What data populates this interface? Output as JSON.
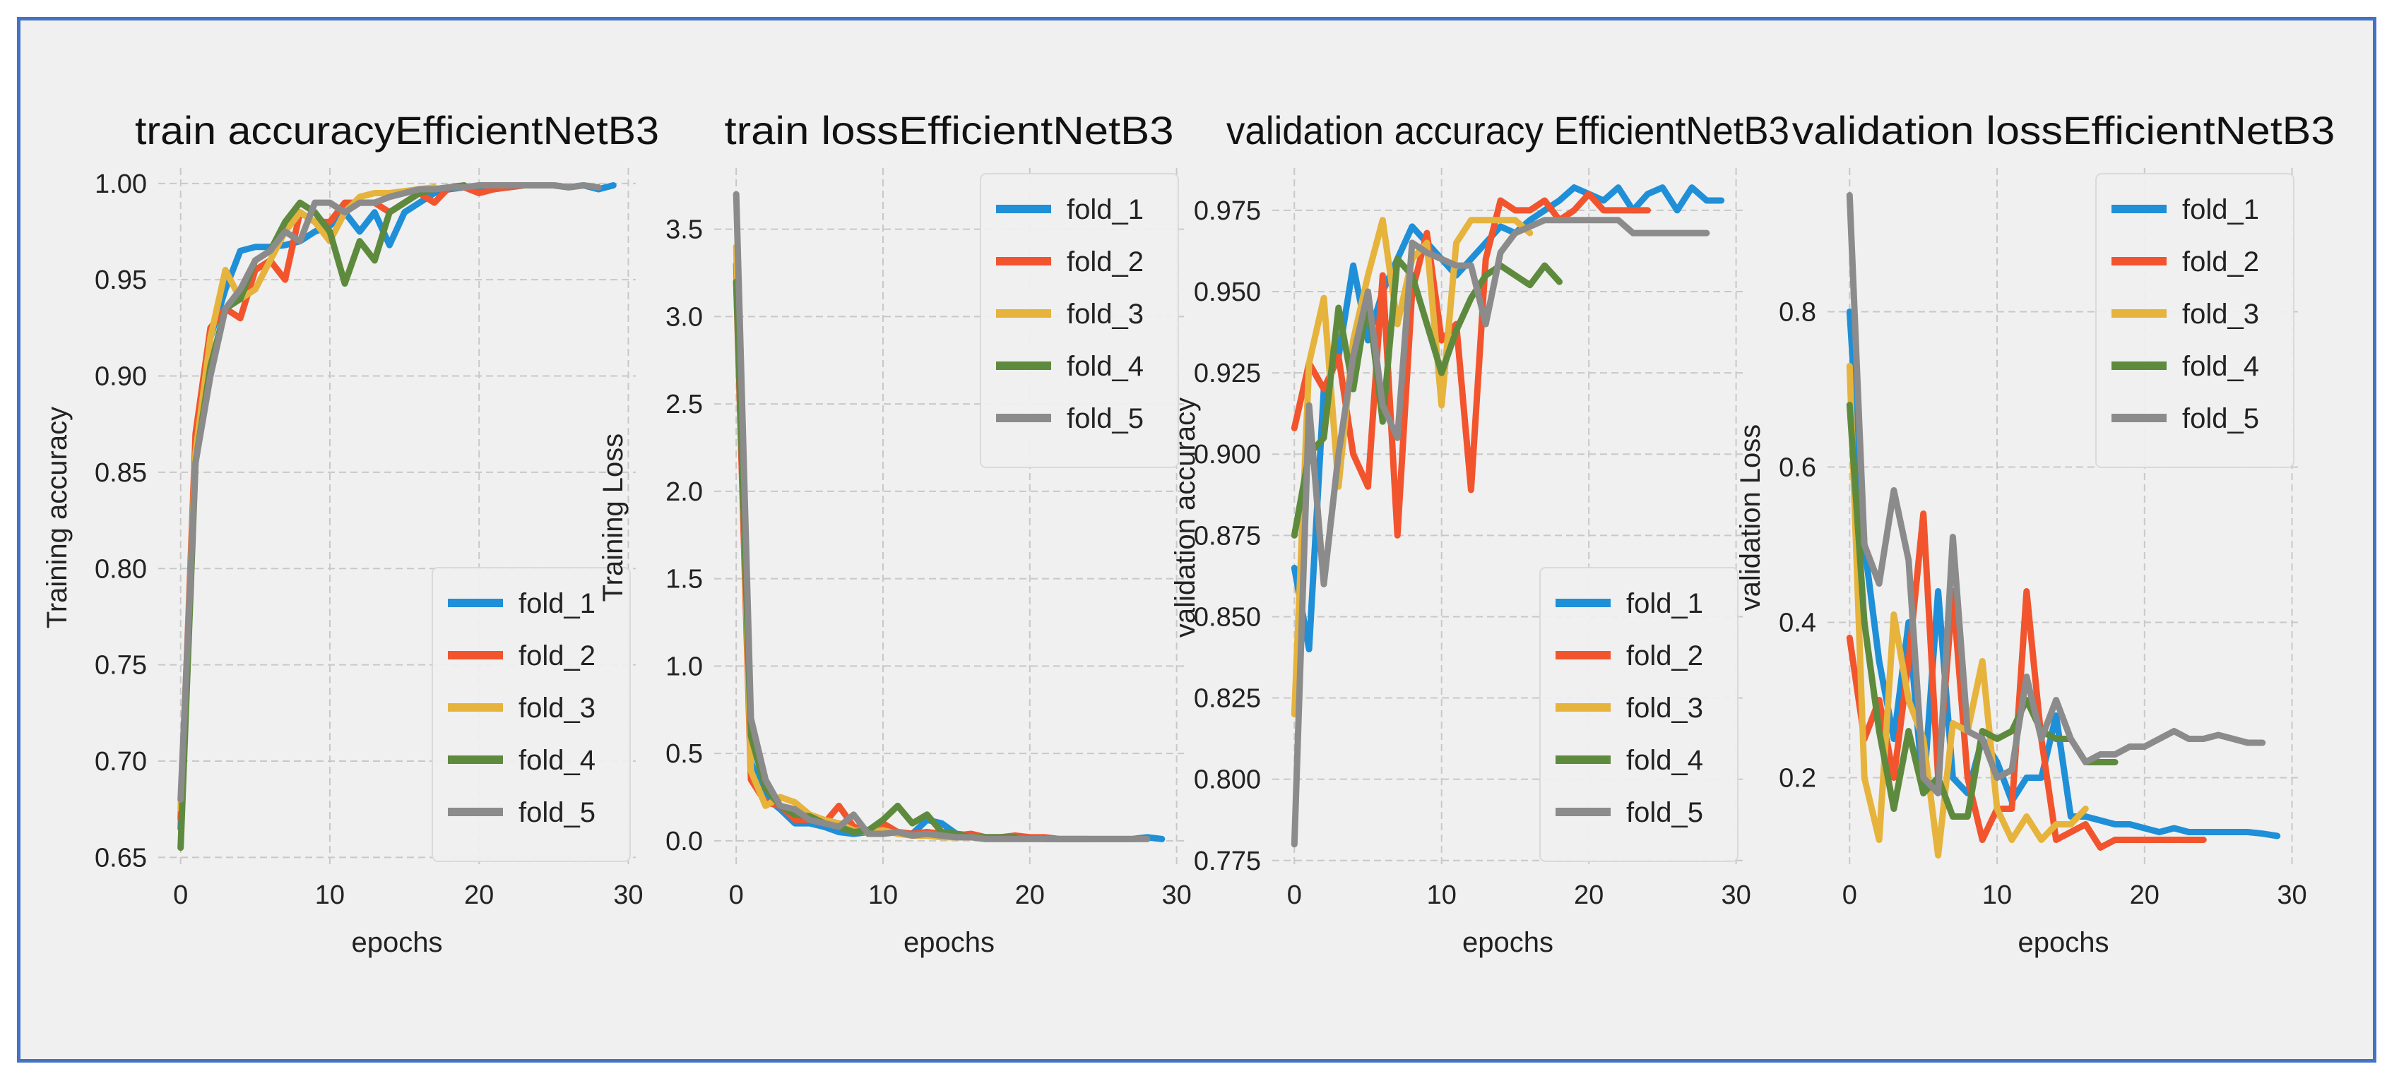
{
  "colors": {
    "fold_1": "#1f8fd8",
    "fold_2": "#f2542d",
    "fold_3": "#e6b33c",
    "fold_4": "#5e8a3e",
    "fold_5": "#8b8b8b",
    "grid": "#c8c8c8",
    "panel": "#f0f0f0",
    "frame": "#4472c4"
  },
  "chart_data": [
    {
      "type": "line",
      "title": "train accuracyEfficientNetB3",
      "xlabel": "epochs",
      "ylabel": "Training accuracy",
      "xlim": [
        -1.5,
        30.5
      ],
      "ylim": [
        0.645,
        1.008
      ],
      "xticks": [
        0,
        10,
        20,
        30
      ],
      "yticks": [
        0.65,
        0.7,
        0.75,
        0.8,
        0.85,
        0.9,
        0.95,
        1.0
      ],
      "ytick_labels": [
        "0.65",
        "0.70",
        "0.75",
        "0.80",
        "0.85",
        "0.90",
        "0.95",
        "1.00"
      ],
      "legend_loc": "lower-right",
      "series": [
        {
          "name": "fold_1",
          "values": [
            0.665,
            0.86,
            0.92,
            0.945,
            0.965,
            0.967,
            0.967,
            0.968,
            0.97,
            0.975,
            0.978,
            0.985,
            0.975,
            0.985,
            0.968,
            0.985,
            0.99,
            0.995,
            0.997,
            0.998,
            0.998,
            0.999,
            0.998,
            0.999,
            0.999,
            0.999,
            0.998,
            0.999,
            0.997,
            0.999
          ]
        },
        {
          "name": "fold_2",
          "values": [
            0.67,
            0.87,
            0.925,
            0.935,
            0.93,
            0.955,
            0.96,
            0.95,
            0.985,
            0.98,
            0.98,
            0.99,
            0.99,
            0.99,
            0.985,
            0.99,
            0.995,
            0.99,
            0.998,
            0.998,
            0.995,
            0.997,
            0.998,
            0.999,
            0.999
          ]
        },
        {
          "name": "fold_3",
          "values": [
            0.675,
            0.86,
            0.92,
            0.955,
            0.94,
            0.945,
            0.96,
            0.975,
            0.985,
            0.98,
            0.97,
            0.985,
            0.993,
            0.995,
            0.995,
            0.996,
            0.997,
            0.998
          ]
        },
        {
          "name": "fold_4",
          "values": [
            0.655,
            0.855,
            0.905,
            0.935,
            0.94,
            0.96,
            0.965,
            0.98,
            0.99,
            0.985,
            0.975,
            0.948,
            0.97,
            0.96,
            0.985,
            0.99,
            0.995,
            0.997,
            0.998,
            0.999
          ]
        },
        {
          "name": "fold_5",
          "values": [
            0.68,
            0.855,
            0.9,
            0.935,
            0.945,
            0.96,
            0.965,
            0.975,
            0.97,
            0.99,
            0.99,
            0.985,
            0.99,
            0.99,
            0.993,
            0.995,
            0.997,
            0.997,
            0.998,
            0.998,
            0.999,
            0.999,
            0.999,
            0.999,
            0.999,
            0.999,
            0.998,
            0.999,
            0.998
          ]
        }
      ]
    },
    {
      "type": "line",
      "title": "train lossEfficientNetB3",
      "xlabel": "epochs",
      "ylabel": "Training Loss",
      "xlim": [
        -1.5,
        30.5
      ],
      "ylim": [
        -0.15,
        3.85
      ],
      "xticks": [
        0,
        10,
        20,
        30
      ],
      "yticks": [
        0.0,
        0.5,
        1.0,
        1.5,
        2.0,
        2.5,
        3.0,
        3.5
      ],
      "ytick_labels": [
        "0.0",
        "0.5",
        "1.0",
        "1.5",
        "2.0",
        "2.5",
        "3.0",
        "3.5"
      ],
      "legend_loc": "upper-right",
      "series": [
        {
          "name": "fold_1",
          "values": [
            3.3,
            0.45,
            0.25,
            0.18,
            0.1,
            0.1,
            0.08,
            0.05,
            0.04,
            0.05,
            0.05,
            0.05,
            0.04,
            0.12,
            0.1,
            0.04,
            0.03,
            0.02,
            0.02,
            0.02,
            0.02,
            0.01,
            0.01,
            0.01,
            0.01,
            0.01,
            0.01,
            0.01,
            0.02,
            0.01
          ]
        },
        {
          "name": "fold_2",
          "values": [
            3.2,
            0.35,
            0.22,
            0.2,
            0.12,
            0.12,
            0.1,
            0.2,
            0.08,
            0.06,
            0.1,
            0.05,
            0.04,
            0.05,
            0.04,
            0.03,
            0.04,
            0.02,
            0.02,
            0.03,
            0.02,
            0.02,
            0.01,
            0.01,
            0.01
          ]
        },
        {
          "name": "fold_3",
          "values": [
            3.4,
            0.4,
            0.2,
            0.25,
            0.22,
            0.15,
            0.12,
            0.1,
            0.06,
            0.05,
            0.06,
            0.04,
            0.03,
            0.03,
            0.02,
            0.02,
            0.02,
            0.02
          ]
        },
        {
          "name": "fold_4",
          "values": [
            3.2,
            0.6,
            0.3,
            0.2,
            0.15,
            0.14,
            0.1,
            0.08,
            0.05,
            0.06,
            0.12,
            0.2,
            0.1,
            0.15,
            0.05,
            0.04,
            0.02,
            0.02,
            0.02,
            0.02
          ]
        },
        {
          "name": "fold_5",
          "values": [
            3.7,
            0.7,
            0.35,
            0.2,
            0.18,
            0.12,
            0.1,
            0.08,
            0.15,
            0.04,
            0.04,
            0.05,
            0.03,
            0.04,
            0.03,
            0.02,
            0.02,
            0.01,
            0.01,
            0.01,
            0.01,
            0.01,
            0.01,
            0.01,
            0.01,
            0.01,
            0.01,
            0.01,
            0.01
          ]
        }
      ]
    },
    {
      "type": "line",
      "title": "validation accuracy EfficientNetB3",
      "xlabel": "epochs",
      "ylabel": "validation accuracy",
      "xlim": [
        -1.5,
        30.5
      ],
      "ylim": [
        0.773,
        0.988
      ],
      "xticks": [
        0,
        10,
        20,
        30
      ],
      "yticks": [
        0.775,
        0.8,
        0.825,
        0.85,
        0.875,
        0.9,
        0.925,
        0.95,
        0.975
      ],
      "ytick_labels": [
        "0.775",
        "0.800",
        "0.825",
        "0.850",
        "0.875",
        "0.900",
        "0.925",
        "0.950",
        "0.975"
      ],
      "legend_loc": "lower-right",
      "series": [
        {
          "name": "fold_1",
          "values": [
            0.865,
            0.84,
            0.92,
            0.93,
            0.958,
            0.935,
            0.95,
            0.96,
            0.97,
            0.965,
            0.96,
            0.955,
            0.96,
            0.965,
            0.97,
            0.968,
            0.972,
            0.975,
            0.978,
            0.982,
            0.98,
            0.978,
            0.982,
            0.975,
            0.98,
            0.982,
            0.975,
            0.982,
            0.978,
            0.978
          ]
        },
        {
          "name": "fold_2",
          "values": [
            0.908,
            0.928,
            0.92,
            0.93,
            0.9,
            0.89,
            0.955,
            0.875,
            0.95,
            0.968,
            0.935,
            0.94,
            0.889,
            0.96,
            0.978,
            0.975,
            0.975,
            0.978,
            0.972,
            0.975,
            0.98,
            0.975,
            0.975,
            0.975,
            0.975
          ]
        },
        {
          "name": "fold_3",
          "values": [
            0.82,
            0.928,
            0.948,
            0.89,
            0.935,
            0.955,
            0.972,
            0.94,
            0.96,
            0.965,
            0.915,
            0.965,
            0.972,
            0.972,
            0.972,
            0.972,
            0.968
          ]
        },
        {
          "name": "fold_4",
          "values": [
            0.875,
            0.9,
            0.905,
            0.945,
            0.92,
            0.948,
            0.91,
            0.96,
            0.955,
            0.94,
            0.925,
            0.938,
            0.948,
            0.955,
            0.958,
            0.955,
            0.952,
            0.958,
            0.953
          ]
        },
        {
          "name": "fold_5",
          "values": [
            0.78,
            0.915,
            0.86,
            0.9,
            0.93,
            0.95,
            0.915,
            0.905,
            0.965,
            0.962,
            0.96,
            0.958,
            0.958,
            0.94,
            0.962,
            0.968,
            0.97,
            0.972,
            0.972,
            0.972,
            0.972,
            0.972,
            0.972,
            0.968,
            0.968,
            0.968,
            0.968,
            0.968,
            0.968
          ]
        }
      ]
    },
    {
      "type": "line",
      "title": "validation lossEfficientNetB3",
      "xlabel": "epochs",
      "ylabel": "validation Loss",
      "xlim": [
        -1.5,
        30.5
      ],
      "ylim": [
        0.085,
        0.985
      ],
      "xticks": [
        0,
        10,
        20,
        30
      ],
      "yticks": [
        0.2,
        0.4,
        0.6,
        0.8
      ],
      "ytick_labels": [
        "0.2",
        "0.4",
        "0.6",
        "0.8"
      ],
      "legend_loc": "upper-right",
      "series": [
        {
          "name": "fold_1",
          "values": [
            0.8,
            0.5,
            0.35,
            0.25,
            0.4,
            0.18,
            0.44,
            0.2,
            0.18,
            0.25,
            0.22,
            0.17,
            0.2,
            0.2,
            0.28,
            0.15,
            0.15,
            0.145,
            0.14,
            0.14,
            0.135,
            0.13,
            0.135,
            0.13,
            0.13,
            0.13,
            0.13,
            0.13,
            0.128,
            0.125
          ]
        },
        {
          "name": "fold_2",
          "values": [
            0.38,
            0.25,
            0.3,
            0.2,
            0.35,
            0.54,
            0.2,
            0.44,
            0.2,
            0.12,
            0.16,
            0.16,
            0.44,
            0.25,
            0.12,
            0.13,
            0.14,
            0.11,
            0.12,
            0.12,
            0.12,
            0.12,
            0.12,
            0.12,
            0.12
          ]
        },
        {
          "name": "fold_3",
          "values": [
            0.73,
            0.2,
            0.12,
            0.41,
            0.3,
            0.25,
            0.1,
            0.27,
            0.26,
            0.35,
            0.16,
            0.12,
            0.15,
            0.12,
            0.14,
            0.14,
            0.16
          ]
        },
        {
          "name": "fold_4",
          "values": [
            0.68,
            0.4,
            0.26,
            0.16,
            0.26,
            0.18,
            0.2,
            0.15,
            0.15,
            0.26,
            0.25,
            0.26,
            0.3,
            0.26,
            0.25,
            0.25,
            0.22,
            0.22,
            0.22
          ]
        },
        {
          "name": "fold_5",
          "values": [
            0.95,
            0.5,
            0.45,
            0.57,
            0.48,
            0.2,
            0.18,
            0.51,
            0.26,
            0.25,
            0.2,
            0.21,
            0.33,
            0.25,
            0.3,
            0.25,
            0.22,
            0.23,
            0.23,
            0.24,
            0.24,
            0.25,
            0.26,
            0.25,
            0.25,
            0.255,
            0.25,
            0.245,
            0.245
          ]
        }
      ]
    }
  ]
}
